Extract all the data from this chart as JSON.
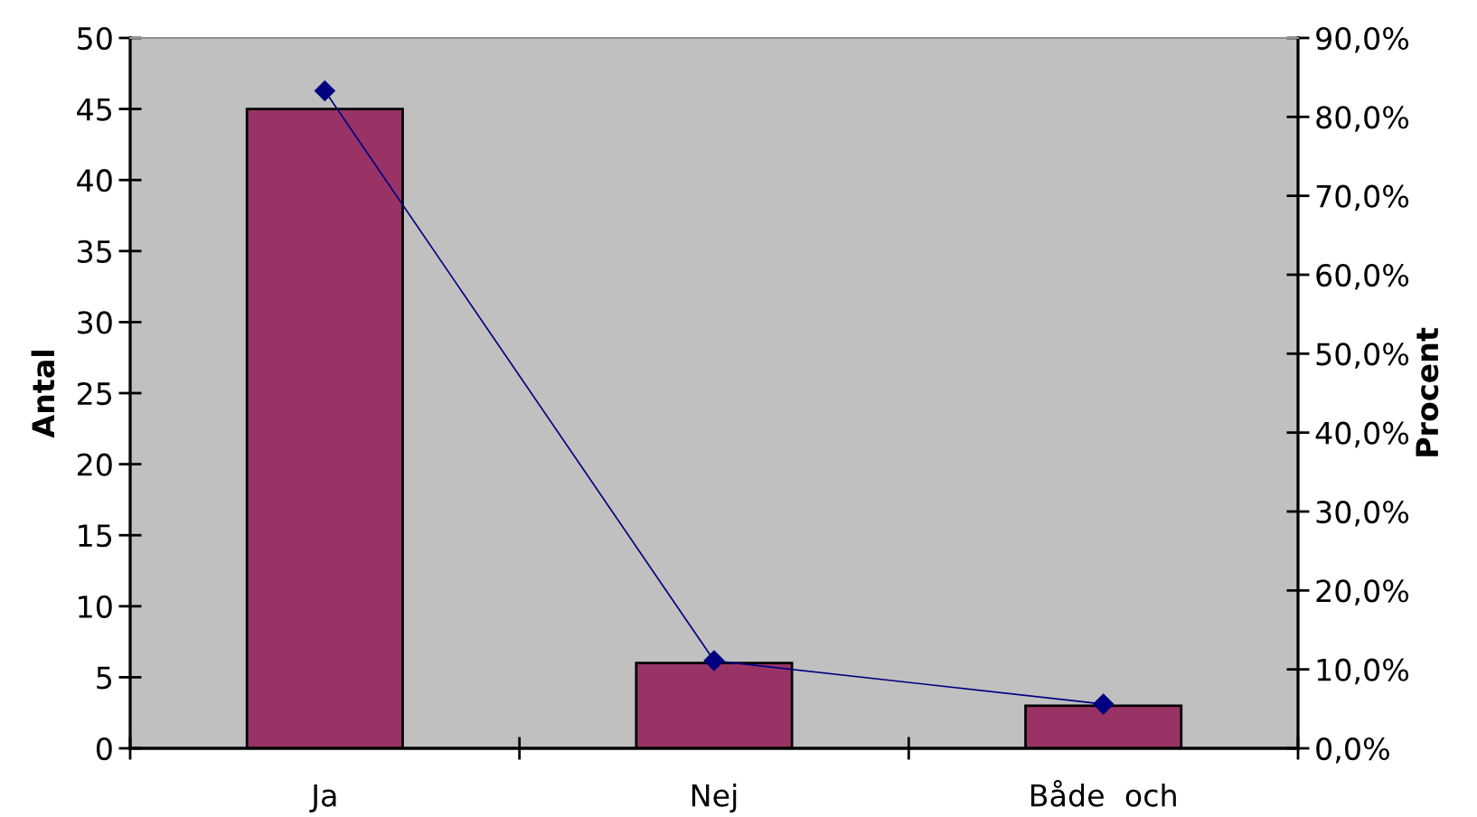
{
  "chart_data": {
    "type": "bar",
    "categories": [
      "Ja",
      "Nej",
      "Både  och"
    ],
    "series": [
      {
        "color": "#993366",
        "values": [
          45,
          6,
          3
        ]
      },
      {
        "type": "line",
        "axis": "y2",
        "color": "#000080",
        "values": [
          83.3,
          11.1,
          5.6
        ]
      }
    ],
    "marker": "diamond",
    "line_style": "solid",
    "ylabel": "Antal",
    "y2label": "Procent",
    "ylim": [
      0,
      50
    ],
    "yticks": [
      0,
      5,
      10,
      15,
      20,
      25,
      30,
      35,
      40,
      45,
      50
    ],
    "y2lim": [
      0,
      90
    ],
    "y2ticks": [
      {
        "value": 0,
        "label": "0,0%"
      },
      {
        "value": 10,
        "label": "10,0%"
      },
      {
        "value": 20,
        "label": "20,0%"
      },
      {
        "value": 30,
        "label": "30,0%"
      },
      {
        "value": 40,
        "label": "40,0%"
      },
      {
        "value": 50,
        "label": "50,0%"
      },
      {
        "value": 60,
        "label": "60,0%"
      },
      {
        "value": 70,
        "label": "70,0%"
      },
      {
        "value": 80,
        "label": "80,0%"
      },
      {
        "value": 90,
        "label": "90,0%"
      }
    ]
  }
}
